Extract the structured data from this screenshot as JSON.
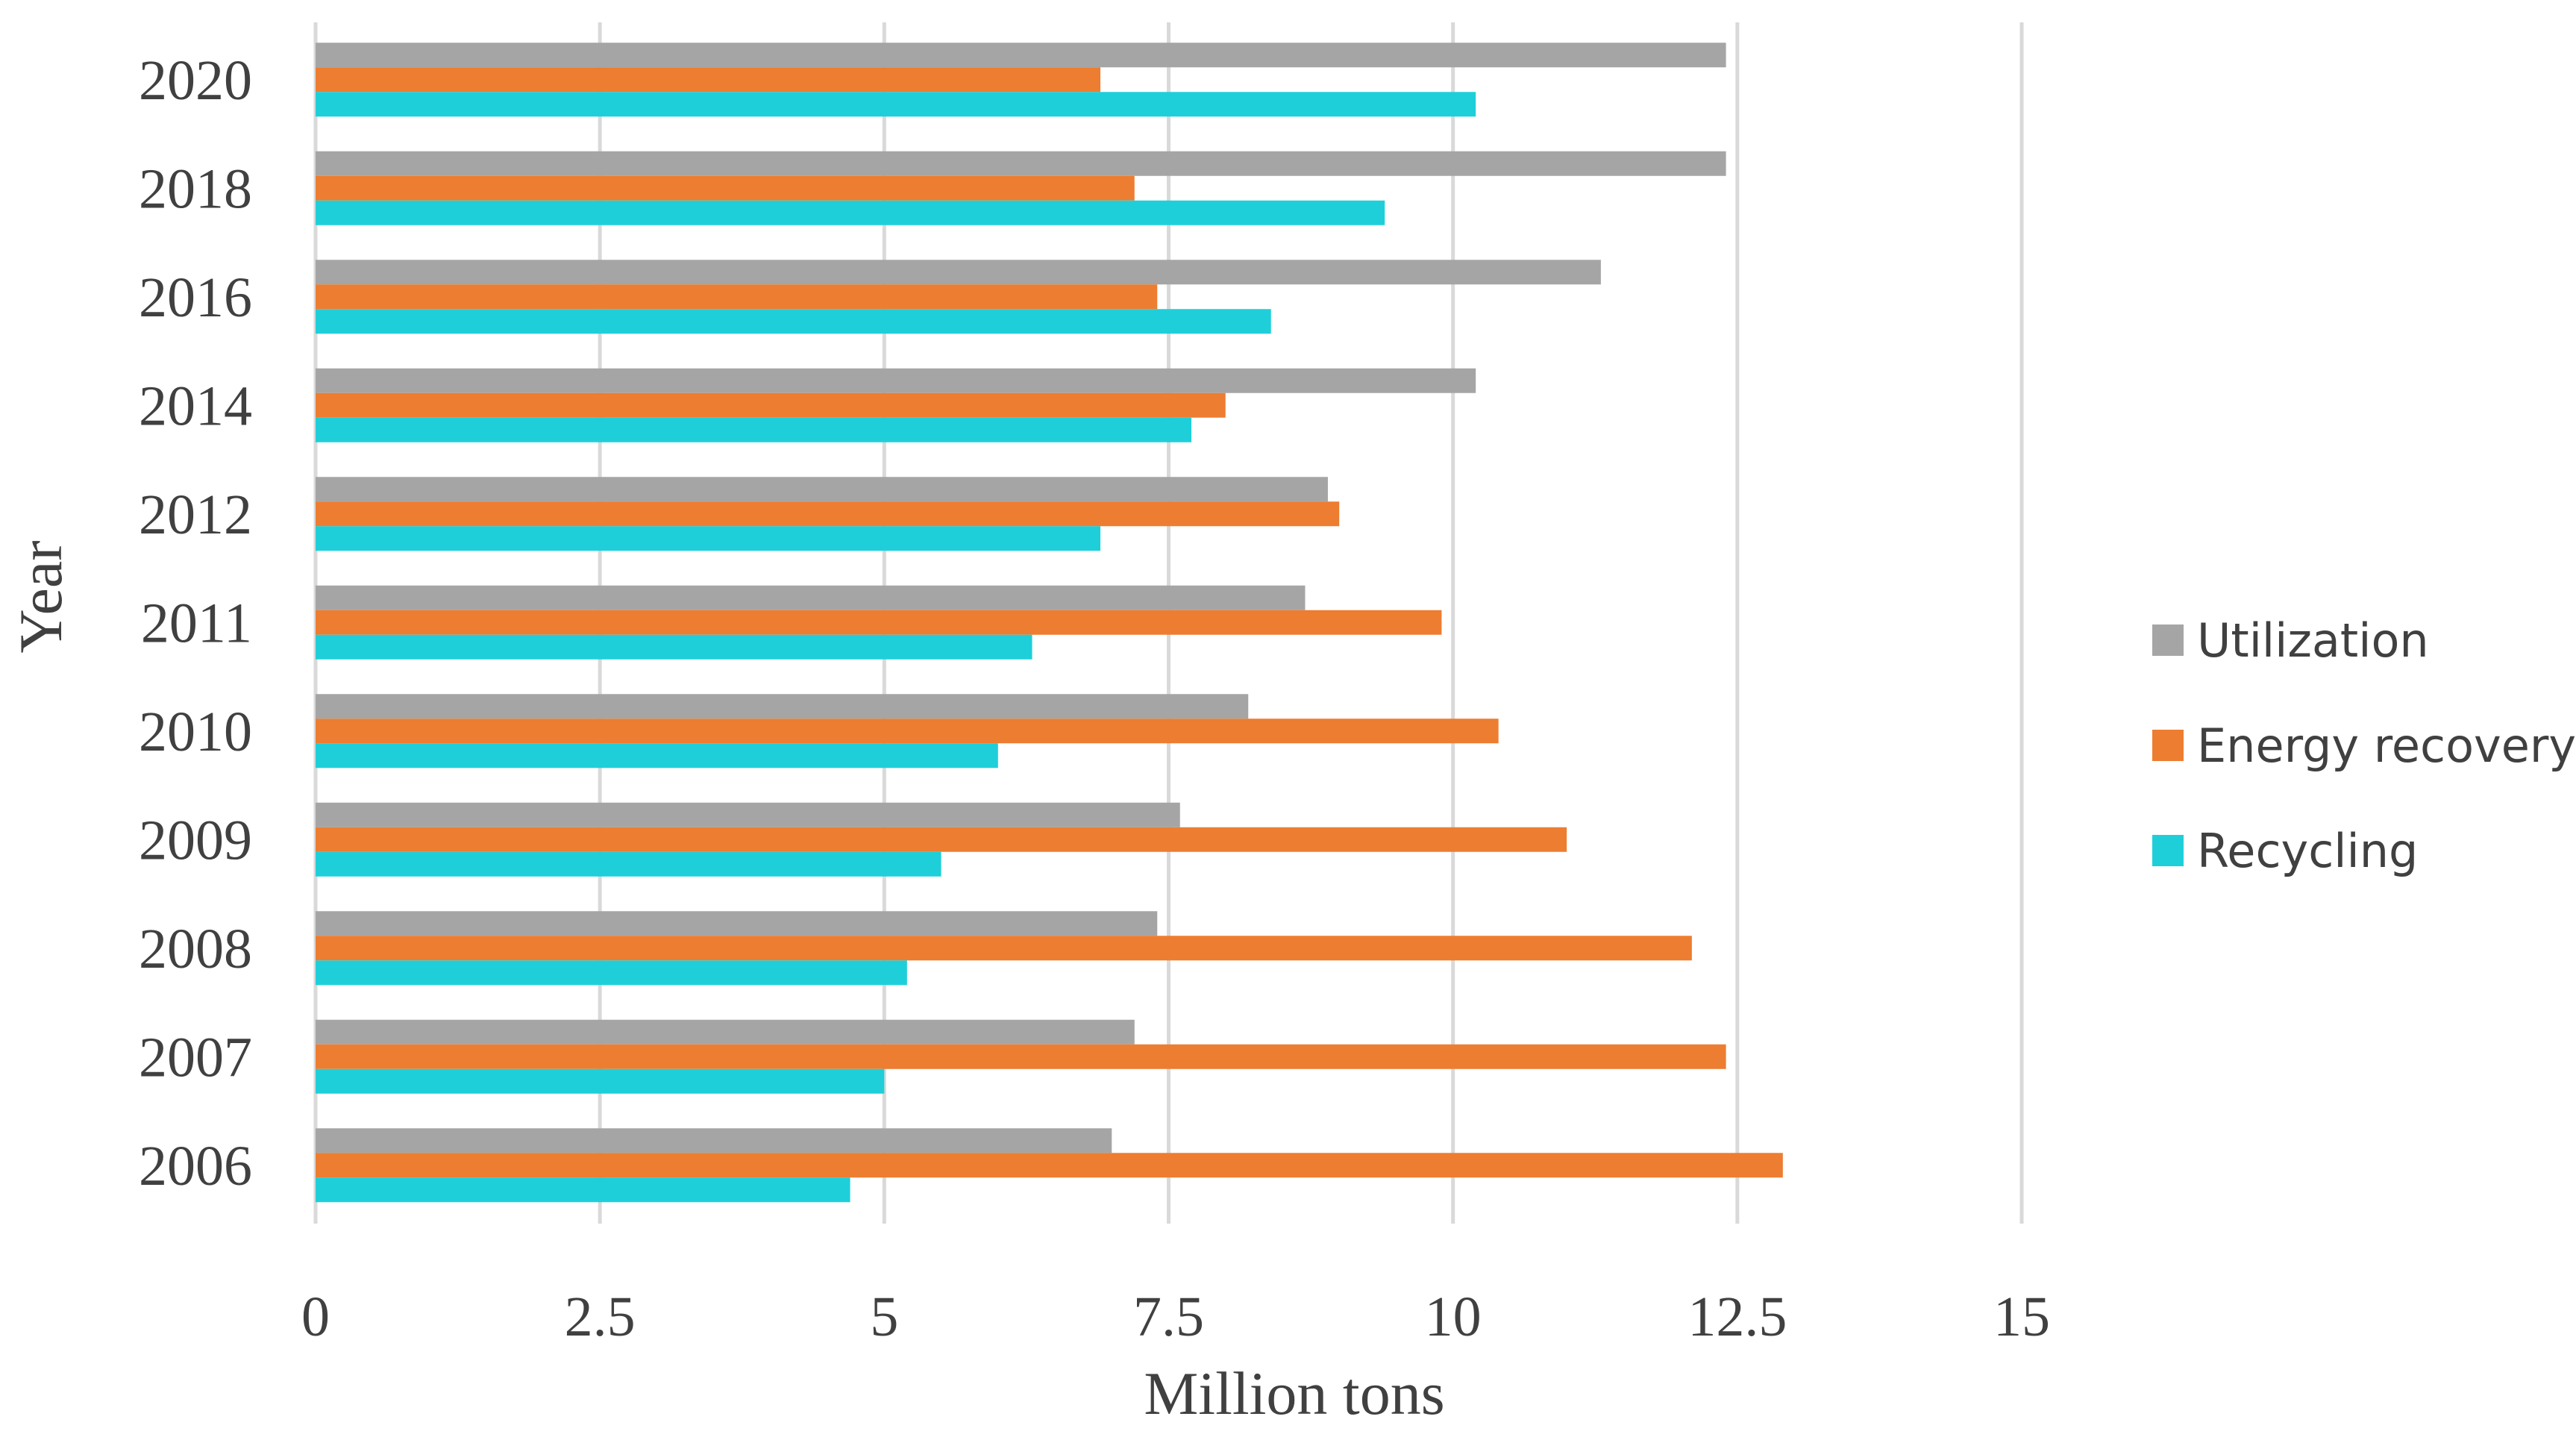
{
  "chart_data": {
    "type": "bar",
    "orientation": "horizontal",
    "categories": [
      "2006",
      "2007",
      "2008",
      "2009",
      "2010",
      "2011",
      "2012",
      "2014",
      "2016",
      "2018",
      "2020"
    ],
    "series": [
      {
        "name": "Utilization",
        "color": "#A5A5A5",
        "values": [
          7.0,
          7.2,
          7.4,
          7.6,
          8.2,
          8.7,
          8.9,
          10.2,
          11.3,
          12.4,
          12.4
        ]
      },
      {
        "name": "Energy recovery",
        "color": "#ED7D31",
        "values": [
          12.9,
          12.4,
          12.1,
          11.0,
          10.4,
          9.9,
          9.0,
          8.0,
          7.4,
          7.2,
          6.9
        ]
      },
      {
        "name": "Recycling",
        "color": "#1ECFDA",
        "values": [
          4.7,
          5.0,
          5.2,
          5.5,
          6.0,
          6.3,
          6.9,
          7.7,
          8.4,
          9.4,
          10.2
        ]
      }
    ],
    "xlabel": "Million tons",
    "ylabel": "Year",
    "xlim": [
      0,
      15
    ],
    "xticks": [
      0,
      2.5,
      5,
      7.5,
      10,
      12.5,
      15
    ],
    "xtick_labels": [
      "0",
      "2.5",
      "5",
      "7.5",
      "10",
      "12.5",
      "15"
    ],
    "grid": "vertical",
    "legend_position": "right",
    "legend_order": [
      "Utilization",
      "Energy recovery",
      "Recycling"
    ]
  }
}
